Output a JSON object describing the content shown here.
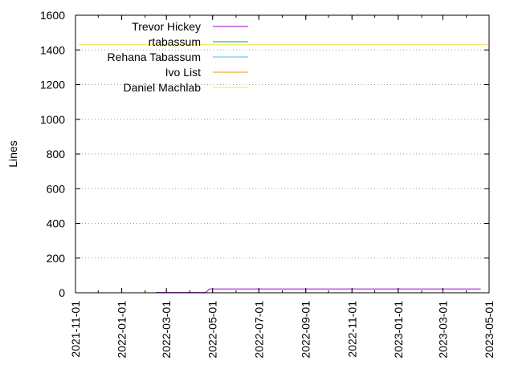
{
  "chart_data": {
    "type": "line",
    "title": "",
    "xlabel": "",
    "ylabel": "Lines",
    "x_scale": "time",
    "xlim": [
      "2021-11-01",
      "2023-05-01"
    ],
    "ylim": [
      0,
      1600
    ],
    "x_ticks": [
      "2021-11-01",
      "2022-01-01",
      "2022-03-01",
      "2022-05-01",
      "2022-07-01",
      "2022-09-01",
      "2022-11-01",
      "2023-01-01",
      "2023-03-01",
      "2023-05-01"
    ],
    "y_ticks": [
      0,
      200,
      400,
      600,
      800,
      1000,
      1200,
      1400,
      1600
    ],
    "grid": true,
    "legend_position": "top-left",
    "series": [
      {
        "name": "Trevor Hickey",
        "color": "#9400d3",
        "points": [
          {
            "x": "2022-02-15",
            "y": 2
          },
          {
            "x": "2022-04-22",
            "y": 2
          },
          {
            "x": "2022-04-27",
            "y": 22
          },
          {
            "x": "2023-04-20",
            "y": 22
          }
        ]
      },
      {
        "name": "rtabassum",
        "color": "#009e73",
        "points": []
      },
      {
        "name": "Rehana Tabassum",
        "color": "#56b4e9",
        "points": []
      },
      {
        "name": "Ivo List",
        "color": "#e69f00",
        "points": []
      },
      {
        "name": "Daniel Machlab",
        "color": "#f0e442",
        "points": [
          {
            "x": "2021-11-05",
            "y": 1430
          },
          {
            "x": "2023-04-30",
            "y": 1430
          }
        ]
      }
    ]
  }
}
